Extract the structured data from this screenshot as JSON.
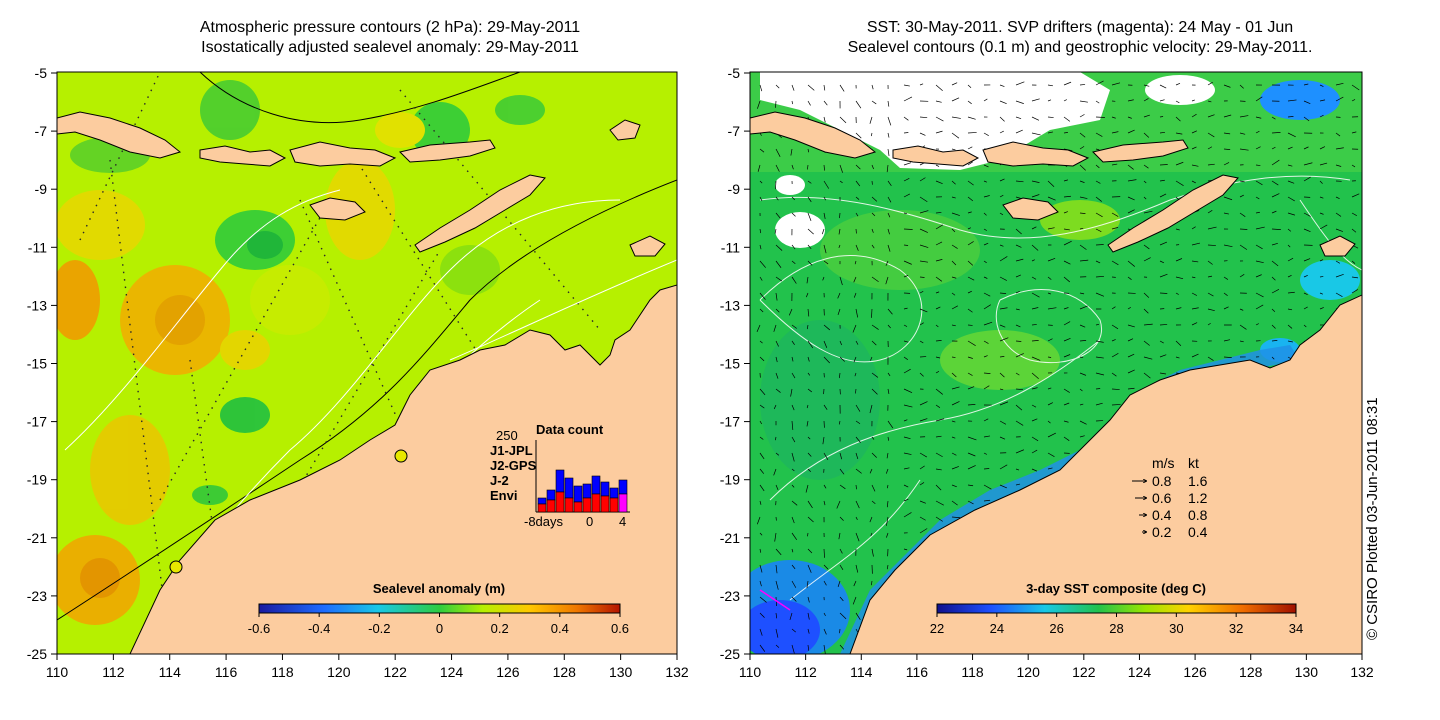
{
  "left_map": {
    "title_line1": "Atmospheric pressure contours (2 hPa): 29-May-2011",
    "title_line2": "Isostatically adjusted sealevel anomaly: 29-May-2011",
    "colorbar_title": "Sealevel anomaly (m)",
    "colorbar_ticks": [
      "-0.6",
      "-0.4",
      "-0.2",
      "0",
      "0.2",
      "0.4",
      "0.6"
    ],
    "data_count": {
      "title": "Data count",
      "max_label": "250",
      "axis_labels": [
        "-8days",
        "0",
        "4"
      ],
      "legend": [
        {
          "label": "J1-JPL",
          "color": "#0000ff"
        },
        {
          "label": "J2-GPS",
          "color": "#ff00ff"
        },
        {
          "label": "J-2",
          "color": "#ff0000"
        },
        {
          "label": "Envi",
          "color": "#00e5e5"
        }
      ]
    }
  },
  "right_map": {
    "title_line1": "SST: 30-May-2011. SVP drifters (magenta): 24 May - 01 Jun",
    "title_line2": "Sealevel contours (0.1 m) and geostrophic velocity: 29-May-2011.",
    "colorbar_title": "3-day SST composite (deg C)",
    "colorbar_ticks": [
      "22",
      "24",
      "26",
      "28",
      "30",
      "32",
      "34"
    ],
    "velocity_legend": {
      "header_ms": "m/s",
      "header_kt": "kt",
      "rows": [
        {
          "ms": "0.8",
          "kt": "1.6"
        },
        {
          "ms": "0.6",
          "kt": "1.2"
        },
        {
          "ms": "0.4",
          "kt": "0.8"
        },
        {
          "ms": "0.2",
          "kt": "0.4"
        }
      ]
    }
  },
  "axes": {
    "lat_ticks": [
      "-5",
      "-7",
      "-9",
      "-11",
      "-13",
      "-15",
      "-17",
      "-19",
      "-21",
      "-23",
      "-25"
    ],
    "lon_ticks": [
      "110",
      "112",
      "114",
      "116",
      "118",
      "120",
      "122",
      "124",
      "126",
      "128",
      "130",
      "132"
    ]
  },
  "credit": "© CSIRO Plotted 03-Jun-2011 08:31",
  "colors": {
    "land": "#fccc9f",
    "ocean_left": "#b6f000",
    "ocean_right": "#22c24c"
  }
}
